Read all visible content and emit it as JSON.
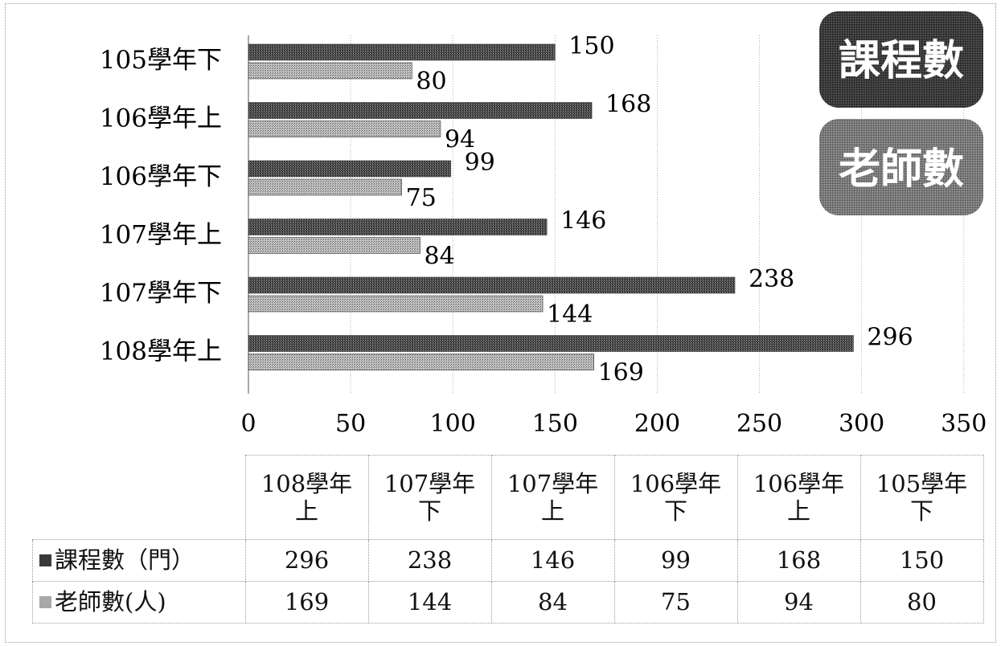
{
  "chart_data": {
    "type": "bar",
    "orientation": "horizontal",
    "categories": [
      "105學年下",
      "106學年上",
      "106學年下",
      "107學年上",
      "107學年下",
      "108學年上"
    ],
    "series": [
      {
        "name": "課程數",
        "values": [
          150,
          168,
          99,
          146,
          238,
          296
        ]
      },
      {
        "name": "老師數",
        "values": [
          80,
          94,
          75,
          84,
          144,
          169
        ]
      }
    ],
    "xlim": [
      0,
      350
    ],
    "x_ticks": [
      "0",
      "50",
      "100",
      "150",
      "200",
      "250",
      "300",
      "350"
    ],
    "grid": true,
    "legend_position": "top-right",
    "colors": {
      "series1": "#3a3a3a",
      "series2": "#a8a8a8",
      "legend1": "#3c3c3c",
      "legend2": "#777777"
    }
  },
  "legend": {
    "items": [
      {
        "label": "課程數"
      },
      {
        "label": "老師數"
      }
    ]
  },
  "table": {
    "headers": [
      {
        "line1": "108學年",
        "line2": "上"
      },
      {
        "line1": "107學年",
        "line2": "下"
      },
      {
        "line1": "107學年",
        "line2": "上"
      },
      {
        "line1": "106學年",
        "line2": "下"
      },
      {
        "line1": "106學年",
        "line2": "上"
      },
      {
        "line1": "105學年",
        "line2": "下"
      }
    ],
    "rows": [
      {
        "label": "課程數（門）",
        "values": [
          "296",
          "238",
          "146",
          "99",
          "168",
          "150"
        ]
      },
      {
        "label": "老師數(人)",
        "values": [
          "169",
          "144",
          "84",
          "75",
          "94",
          "80"
        ]
      }
    ]
  }
}
